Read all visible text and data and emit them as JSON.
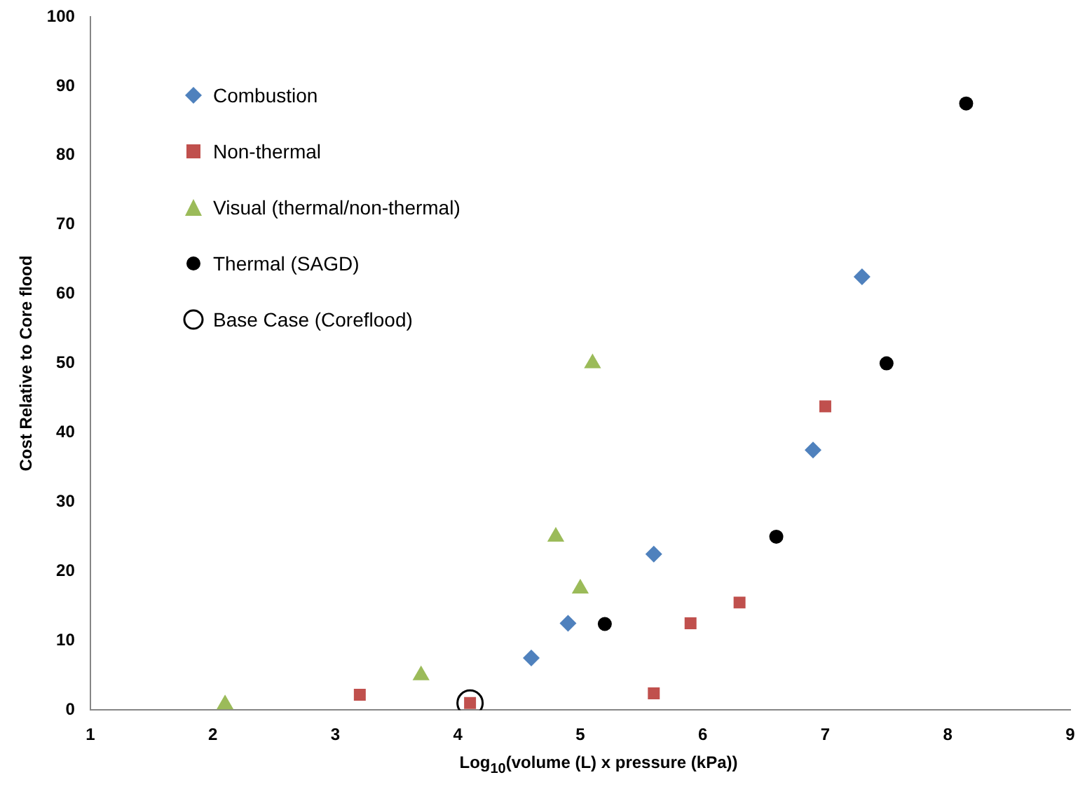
{
  "chart_data": {
    "type": "scatter",
    "xlabel": "Log$_{10}$(volume (L) x pressure (kPa))",
    "ylabel": "Cost Relative to Core flood",
    "xlim": [
      1,
      9
    ],
    "xticks": [
      1,
      2,
      3,
      4,
      5,
      6,
      7,
      8,
      9
    ],
    "ylim": [
      0,
      100
    ],
    "yticks": [
      0,
      10,
      20,
      30,
      40,
      50,
      60,
      70,
      80,
      90,
      100
    ],
    "grid": false,
    "legend": "top left",
    "series": [
      {
        "name": "Combustion",
        "color": "#4f81bd",
        "marker": "diamond",
        "x": [
          4.6,
          4.9,
          5.6,
          6.9,
          7.3
        ],
        "values": [
          7.5,
          12.5,
          22.5,
          37.5,
          62.5
        ]
      },
      {
        "name": "Non-thermal",
        "color": "#c0504d",
        "marker": "square",
        "x": [
          3.2,
          4.1,
          5.6,
          5.9,
          6.3,
          7.0
        ],
        "values": [
          2.2,
          1,
          2.4,
          12.5,
          15.5,
          43.8
        ]
      },
      {
        "name": "Visual (thermal/non-thermal)",
        "color": "#9bbb59",
        "marker": "triangle",
        "x": [
          2.1,
          3.7,
          4.8,
          5.0,
          5.1
        ],
        "values": [
          0.8,
          5,
          25,
          17.5,
          50
        ]
      },
      {
        "name": "Thermal (SAGD)",
        "color": "#000000",
        "marker": "circle",
        "x": [
          5.2,
          6.6,
          7.5,
          8.15
        ],
        "values": [
          12.4,
          25,
          50,
          87.5
        ]
      },
      {
        "name": "Base Case (Coreflood)",
        "color": "#000000",
        "marker": "circle",
        "x": [
          4.1
        ],
        "values": [
          1
        ]
      }
    ]
  }
}
